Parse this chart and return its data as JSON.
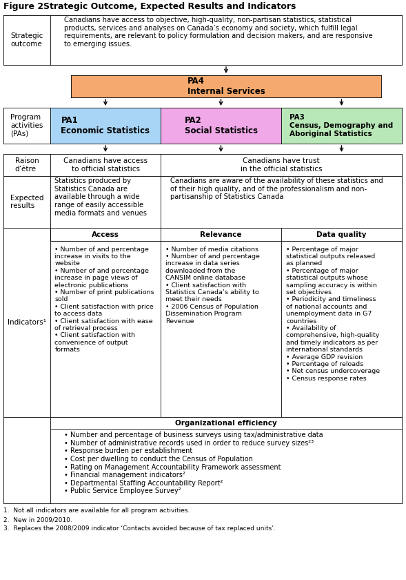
{
  "title1": "Figure 2",
  "title2": "Strategic Outcome, Expected Results and Indicators",
  "fig_width": 5.89,
  "fig_height": 8.4,
  "dpi": 100,
  "pa4_color": "#f5a96e",
  "pa1_color": "#a8d4f5",
  "pa2_color": "#f0a8e8",
  "pa3_color": "#b8e8b8",
  "strategic_outcome_text": "Canadians have access to objective, high-quality, non-partisan statistics, statistical\nproducts, services and analyses on Canada’s economy and society, which fulfill legal\nrequirements, are relevant to policy formulation and decision makers, and are responsive\nto emerging issues.",
  "raison_left": "Canadians have access\nto official statistics",
  "raison_right": "Canadians have trust\nin the official statistics",
  "expected_left": "Statistics produced by\nStatistics Canada are\navailable through a wide\nrange of easily accessible\nmedia formats and venues",
  "expected_right": "Canadians are aware of the availability of these statistics and\nof their high quality, and of the professionalism and non-\npartisanship of Statistics Canada",
  "access_items": [
    "Number of and percentage\nincrease in visits to the\nwebsite",
    "Number of and percentage\nincrease in page views of\nelectronic publications",
    "Number of print publications\nsold",
    "Client satisfaction with price\nto access data",
    "Client satisfaction with ease\nof retrieval process",
    "Client satisfaction with\nconvenience of output\nformats"
  ],
  "relevance_items": [
    "Number of media citations",
    "Number of and percentage\nincrease in data series\ndownloaded from the\nCANSIM online database",
    "Client satisfaction with\nStatistics Canada’s ability to\nmeet their needs",
    "2006 Census of Population\nDissemination Program\nRevenue"
  ],
  "data_quality_items": [
    "Percentage of major\nstatistical outputs released\nas planned",
    "Percentage of major\nstatistical outputs whose\nsampling accuracy is within\nset objectives",
    "Periodicity and timeliness\nof national accounts and\nunemployment data in G7\ncountries",
    "Availability of\ncomprehensive, high-quality\nand timely indicators as per\ninternational standards",
    "Average GDP revision",
    "Percentage of reloads",
    "Net census undercoverage",
    "Census response rates"
  ],
  "org_efficiency_items": [
    "Number and percentage of business surveys using tax/administrative data",
    "Number of administrative records used in order to reduce survey sizes²³",
    "Response burden per establishment",
    "Cost per dwelling to conduct the Census of Population",
    "Rating on Management Accountability Framework assessment",
    "Financial management indicators²",
    "Departmental Staffing Accountability Report²",
    "Public Service Employee Survey²"
  ],
  "footnotes": [
    "1.  Not all indicators are available for all program activities.",
    "2.  New in 2009/2010.",
    "3.  Replaces the 2008/2009 indicator ‘Contacts avoided because of tax replaced units’."
  ]
}
